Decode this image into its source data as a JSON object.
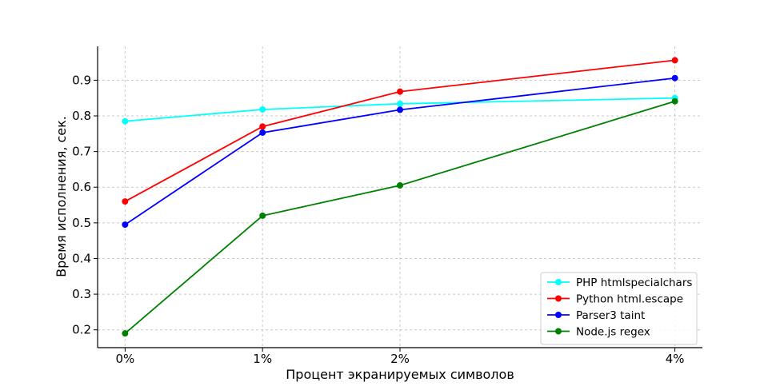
{
  "chart_data": {
    "type": "line",
    "xlabel": "Процент экранируемых символов",
    "ylabel": "Время исполнения, сек.",
    "x_tick_labels": [
      "0%",
      "1%",
      "2%",
      "4%"
    ],
    "x": [
      0,
      1,
      2,
      4
    ],
    "xlim": [
      -0.2,
      4.2
    ],
    "ylim": [
      0.15,
      0.995
    ],
    "y_ticks": [
      0.2,
      0.3,
      0.4,
      0.5,
      0.6,
      0.7,
      0.8,
      0.9
    ],
    "y_tick_labels": [
      "0.2",
      "0.3",
      "0.4",
      "0.5",
      "0.6",
      "0.7",
      "0.8",
      "0.9"
    ],
    "grid": true,
    "legend_position": "bottom-right",
    "series": [
      {
        "name": "PHP htmlspecialchars",
        "color": "#00ffff",
        "values": [
          0.785,
          0.818,
          0.834,
          0.85
        ]
      },
      {
        "name": "Python html.escape",
        "color": "#ff0000",
        "values": [
          0.56,
          0.77,
          0.868,
          0.956
        ]
      },
      {
        "name": "Parser3 taint",
        "color": "#0000ff",
        "values": [
          0.495,
          0.753,
          0.817,
          0.906
        ]
      },
      {
        "name": "Node.js regex",
        "color": "#008000",
        "values": [
          0.19,
          0.52,
          0.605,
          0.841
        ]
      }
    ]
  }
}
